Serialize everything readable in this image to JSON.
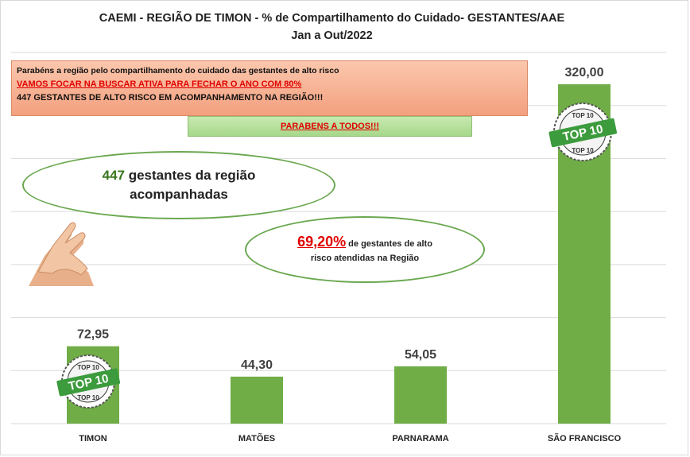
{
  "title_line1": "CAEMI - REGIÃO DE TIMON - % de Compartilhamento do Cuidado- GESTANTES/AAE",
  "title_line2": "Jan a Out/2022",
  "notice": {
    "line1": "Parabéns a região pelo compartilhamento do cuidado das gestantes de alto risco",
    "line2": "VAMOS FOCAR NA BUSCAR ATIVA PARA FECHAR O ANO COM 80%",
    "line3": "447 GESTANTES DE ALTO RISCO EM ACOMPANHAMENTO NA REGIÃO!!!"
  },
  "congrats": "PARABENS A TODOS!!!",
  "callout1": {
    "number": "447",
    "text_a": " gestantes da região",
    "text_b": "acompanhadas"
  },
  "callout2": {
    "percent": "69,20%",
    "text_a": " de gestantes de alto",
    "text_b": "risco atendidas na Região"
  },
  "badge": {
    "top_text": "TOP 10",
    "main_text": "TOP 10",
    "bottom_text": "TOP 10"
  },
  "colors": {
    "bar": "#70ad47",
    "grid": "#d9d9d9",
    "badge_green": "#3c9b3c"
  },
  "chart_data": {
    "type": "bar",
    "categories": [
      "TIMON",
      "MATÕES",
      "PARNARAMA",
      "SÃO FRANCISCO"
    ],
    "values": [
      72.95,
      44.3,
      54.05,
      320.0
    ],
    "value_labels": [
      "72,95",
      "44,30",
      "54,05",
      "320,00"
    ],
    "ylim": [
      0,
      350
    ],
    "grid": true,
    "badges_on": [
      "TIMON",
      "SÃO FRANCISCO"
    ]
  }
}
